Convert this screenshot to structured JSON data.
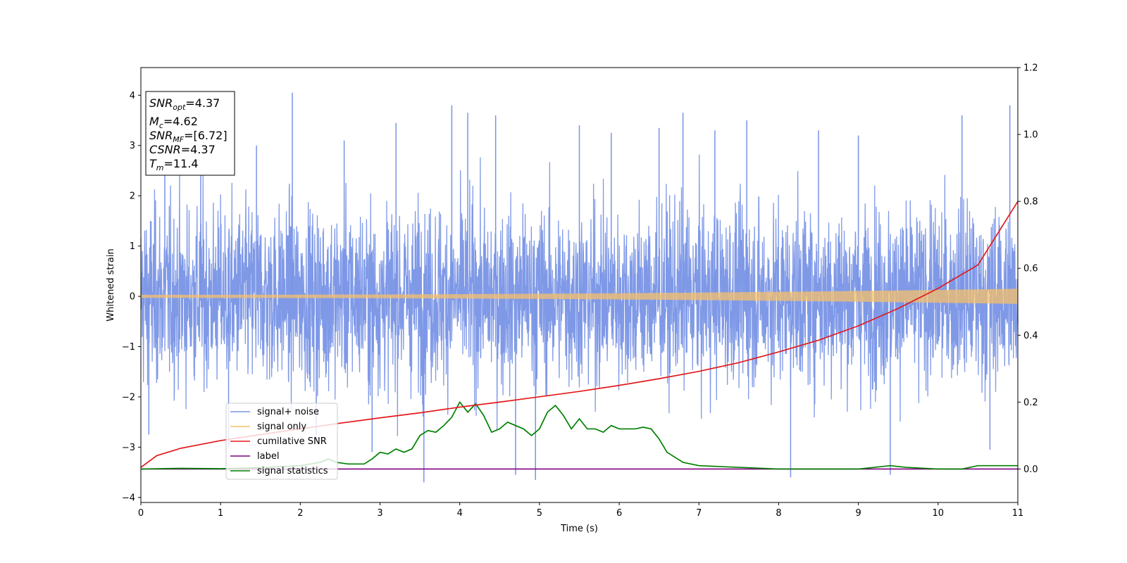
{
  "chart_data": {
    "type": "line",
    "xlabel": "Time (s)",
    "ylabel": "Whitened strain",
    "xlim": [
      0,
      11
    ],
    "ylim_left": [
      -4.1,
      4.55
    ],
    "ylim_right": [
      -0.1,
      1.2
    ],
    "x_ticks": [
      0,
      1,
      2,
      3,
      4,
      5,
      6,
      7,
      8,
      9,
      10,
      11
    ],
    "y_ticks_left": [
      -4,
      -3,
      -2,
      -1,
      0,
      1,
      2,
      3,
      4
    ],
    "y_ticks_right": [
      0.0,
      0.2,
      0.4,
      0.6,
      0.8,
      1.0,
      1.2
    ],
    "y_tick_labels_left": [
      "−4",
      "−3",
      "−2",
      "−1",
      "0",
      "1",
      "2",
      "3",
      "4"
    ],
    "y_tick_labels_right": [
      "0.0",
      "0.2",
      "0.4",
      "0.6",
      "0.8",
      "1.0",
      "1.2"
    ],
    "legend_position": "lower-left",
    "annotation": {
      "lines": [
        {
          "sym": "SNR",
          "sub": "opt",
          "val": "=4.37"
        },
        {
          "sym": "M",
          "sub": "c",
          "val": "=4.62"
        },
        {
          "sym": "SNR",
          "sub": "MF",
          "val": "=[6.72]"
        },
        {
          "sym": "CSNR",
          "sub": "",
          "val": "=4.37"
        },
        {
          "sym": "T",
          "sub": "m",
          "val": "=11.4"
        }
      ]
    },
    "series": [
      {
        "name": "signal+ noise",
        "color": "#7893e6",
        "axis": "left",
        "kind": "noise",
        "envelope_typical": 2.2,
        "spikes": [
          [
            0.1,
            -2.75
          ],
          [
            0.3,
            2.7
          ],
          [
            0.75,
            3.25
          ],
          [
            1.1,
            -3.0
          ],
          [
            1.45,
            3.0
          ],
          [
            1.9,
            4.05
          ],
          [
            2.2,
            -2.9
          ],
          [
            2.55,
            3.1
          ],
          [
            2.9,
            -3.1
          ],
          [
            3.2,
            3.45
          ],
          [
            3.55,
            -3.7
          ],
          [
            3.9,
            3.8
          ],
          [
            4.1,
            3.65
          ],
          [
            4.45,
            3.6
          ],
          [
            4.7,
            -3.55
          ],
          [
            4.95,
            -3.65
          ],
          [
            5.5,
            3.4
          ],
          [
            5.9,
            3.25
          ],
          [
            6.5,
            3.35
          ],
          [
            6.8,
            3.65
          ],
          [
            7.2,
            3.3
          ],
          [
            7.6,
            3.5
          ],
          [
            8.15,
            -3.6
          ],
          [
            8.5,
            3.3
          ],
          [
            9.0,
            3.2
          ],
          [
            9.4,
            -3.55
          ],
          [
            10.3,
            3.6
          ],
          [
            10.65,
            -3.05
          ],
          [
            10.9,
            3.8
          ]
        ]
      },
      {
        "name": "signal only",
        "color": "#f5c06b",
        "axis": "left",
        "amplitude_start": 0.03,
        "amplitude_end": 0.15
      },
      {
        "name": "cumilative SNR",
        "color": "#e31a1c",
        "axis": "right",
        "x": [
          0,
          0.2,
          0.5,
          1,
          1.5,
          2,
          2.5,
          3,
          3.5,
          4,
          4.5,
          5,
          5.5,
          6,
          6.5,
          7,
          7.5,
          8,
          8.5,
          9,
          9.5,
          10,
          10.5,
          11
        ],
        "y": [
          0.005,
          0.04,
          0.062,
          0.085,
          0.103,
          0.12,
          0.137,
          0.153,
          0.168,
          0.185,
          0.2,
          0.216,
          0.232,
          0.25,
          0.27,
          0.292,
          0.318,
          0.35,
          0.385,
          0.428,
          0.48,
          0.54,
          0.61,
          0.8
        ]
      },
      {
        "name": "label",
        "color": "#800080",
        "axis": "right",
        "x": [
          0,
          11
        ],
        "y": [
          0.0,
          0.0
        ]
      },
      {
        "name": "signal statistics",
        "color": "#008000",
        "axis": "right",
        "x": [
          0,
          0.5,
          1,
          1.5,
          2,
          2.25,
          2.35,
          2.45,
          2.6,
          2.8,
          2.9,
          3.0,
          3.1,
          3.2,
          3.3,
          3.4,
          3.5,
          3.6,
          3.7,
          3.8,
          3.9,
          4.0,
          4.1,
          4.2,
          4.3,
          4.4,
          4.5,
          4.6,
          4.7,
          4.8,
          4.9,
          5.0,
          5.1,
          5.2,
          5.3,
          5.4,
          5.5,
          5.6,
          5.7,
          5.8,
          5.9,
          6.0,
          6.1,
          6.2,
          6.3,
          6.4,
          6.5,
          6.6,
          6.8,
          7.0,
          7.5,
          8.0,
          9.0,
          9.4,
          9.6,
          10.0,
          10.3,
          10.5,
          10.7,
          11.0
        ],
        "y": [
          0.0,
          0.002,
          0.001,
          0.004,
          0.01,
          0.02,
          0.03,
          0.02,
          0.015,
          0.015,
          0.03,
          0.05,
          0.045,
          0.06,
          0.05,
          0.06,
          0.1,
          0.115,
          0.11,
          0.13,
          0.155,
          0.2,
          0.17,
          0.195,
          0.16,
          0.11,
          0.12,
          0.14,
          0.13,
          0.12,
          0.1,
          0.12,
          0.17,
          0.19,
          0.16,
          0.12,
          0.15,
          0.12,
          0.12,
          0.11,
          0.13,
          0.12,
          0.12,
          0.12,
          0.125,
          0.12,
          0.09,
          0.05,
          0.02,
          0.01,
          0.005,
          0.0,
          0.0,
          0.01,
          0.005,
          0.0,
          0.0,
          0.01,
          0.01,
          0.01
        ]
      }
    ]
  }
}
